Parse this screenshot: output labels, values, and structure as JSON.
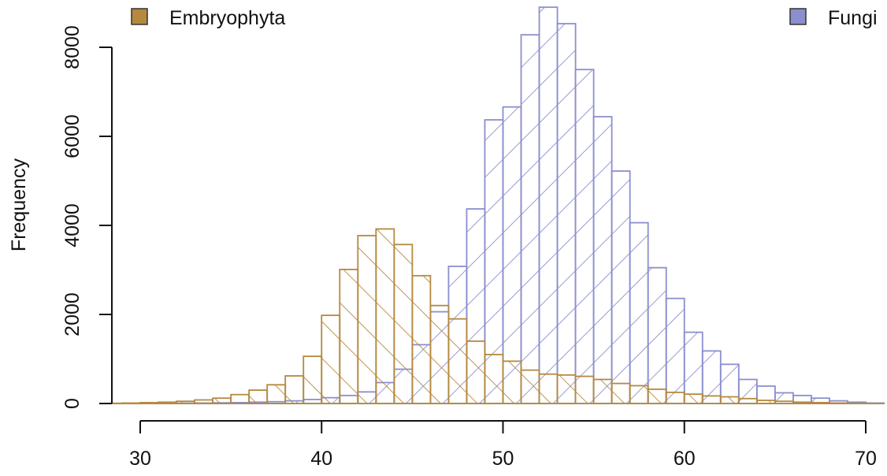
{
  "chart_data": {
    "type": "bar",
    "subtype": "overlaid-histogram",
    "title": "",
    "xlabel": "",
    "ylabel": "Frequency",
    "xlim": [
      28.5,
      71
    ],
    "ylim": [
      0,
      8900
    ],
    "bin_width": 1,
    "x_ticks": [
      30,
      40,
      50,
      60,
      70
    ],
    "y_ticks": [
      0,
      2000,
      4000,
      6000,
      8000
    ],
    "grid": false,
    "legend": [
      {
        "label": "Embryophyta",
        "position": "top-left"
      },
      {
        "label": "Fungi",
        "position": "top-right"
      }
    ],
    "series": [
      {
        "name": "Embryophyta",
        "color": "#b5893f",
        "hatch_angle": 45,
        "bins_start": [
          28,
          29,
          30,
          31,
          32,
          33,
          34,
          35,
          36,
          37,
          38,
          39,
          40,
          41,
          42,
          43,
          44,
          45,
          46,
          47,
          48,
          49,
          50,
          51,
          52,
          53,
          54,
          55,
          56,
          57,
          58,
          59,
          60,
          61,
          62,
          63,
          64,
          65,
          66,
          67,
          68,
          69,
          70
        ],
        "values": [
          5,
          10,
          20,
          30,
          50,
          80,
          120,
          200,
          300,
          420,
          620,
          1060,
          1980,
          3010,
          3770,
          3920,
          3570,
          2870,
          2200,
          1900,
          1400,
          1100,
          950,
          750,
          660,
          640,
          610,
          540,
          450,
          400,
          320,
          250,
          210,
          170,
          150,
          110,
          70,
          50,
          30,
          20,
          10,
          5,
          2
        ]
      },
      {
        "name": "Fungi",
        "color": "#8b8fce",
        "hatch_angle": -45,
        "bins_start": [
          28,
          29,
          30,
          31,
          32,
          33,
          34,
          35,
          36,
          37,
          38,
          39,
          40,
          41,
          42,
          43,
          44,
          45,
          46,
          47,
          48,
          49,
          50,
          51,
          52,
          53,
          54,
          55,
          56,
          57,
          58,
          59,
          60,
          61,
          62,
          63,
          64,
          65,
          66,
          67,
          68,
          69,
          70
        ],
        "values": [
          2,
          3,
          5,
          5,
          8,
          10,
          15,
          20,
          30,
          40,
          60,
          90,
          130,
          180,
          260,
          470,
          770,
          1320,
          2060,
          3080,
          4370,
          6370,
          6660,
          8280,
          8900,
          8530,
          7500,
          6440,
          5220,
          4060,
          3050,
          2360,
          1600,
          1180,
          880,
          540,
          390,
          240,
          180,
          120,
          60,
          30,
          10
        ]
      }
    ]
  }
}
